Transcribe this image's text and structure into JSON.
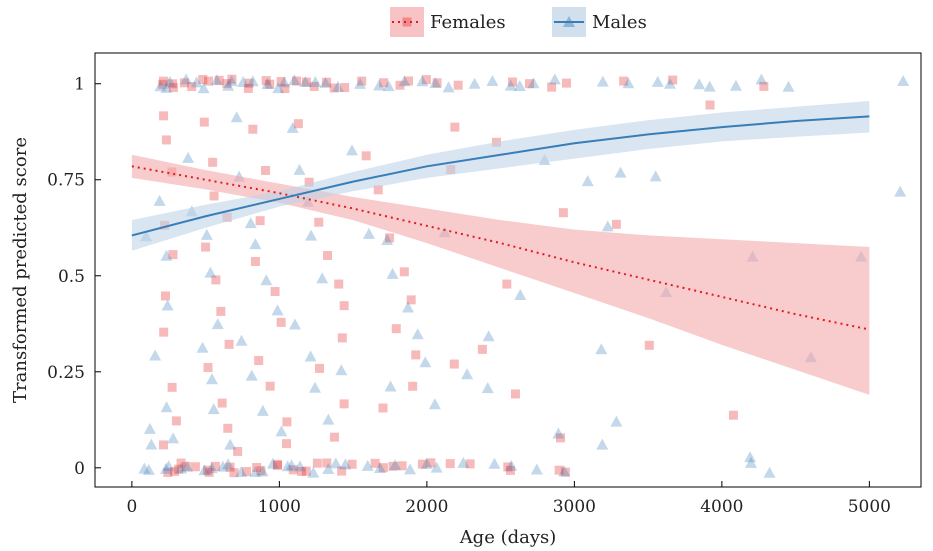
{
  "chart_data": {
    "type": "scatter",
    "xlabel": "Age (days)",
    "ylabel": "Transformed predicted score",
    "xlim": [
      -250,
      5350
    ],
    "ylim": [
      -0.05,
      1.08
    ],
    "x_ticks": [
      0,
      1000,
      2000,
      3000,
      4000,
      5000
    ],
    "x_tick_labels": [
      "0",
      "1000",
      "2000",
      "3000",
      "4000",
      "5000"
    ],
    "y_ticks": [
      0,
      0.25,
      0.5,
      0.75,
      1
    ],
    "y_tick_labels": [
      "0",
      "0.25",
      "0.5",
      "0.75",
      "1"
    ],
    "grid": false,
    "legend_position": "top-center",
    "series": [
      {
        "name": "Females",
        "marker": "square",
        "color": "#e41a1c",
        "band_color": "#f4a9ab",
        "fit": {
          "style": "dotted",
          "x": [
            0,
            500,
            1000,
            1500,
            2000,
            2500,
            3000,
            3500,
            4000,
            4500,
            5000
          ],
          "y": [
            0.785,
            0.75,
            0.715,
            0.675,
            0.63,
            0.585,
            0.535,
            0.49,
            0.445,
            0.4,
            0.36
          ],
          "lower": [
            0.755,
            0.725,
            0.69,
            0.645,
            0.585,
            0.52,
            0.455,
            0.39,
            0.32,
            0.255,
            0.19
          ],
          "upper": [
            0.815,
            0.775,
            0.74,
            0.705,
            0.675,
            0.645,
            0.62,
            0.605,
            0.595,
            0.585,
            0.575
          ]
        },
        "points": [
          [
            210,
            1
          ],
          [
            240,
            1
          ],
          [
            280,
            1
          ],
          [
            310,
            1
          ],
          [
            350,
            1
          ],
          [
            420,
            1
          ],
          [
            470,
            1
          ],
          [
            520,
            1
          ],
          [
            580,
            1
          ],
          [
            640,
            1
          ],
          [
            700,
            1
          ],
          [
            760,
            1
          ],
          [
            820,
            1
          ],
          [
            880,
            1
          ],
          [
            940,
            1
          ],
          [
            1000,
            1
          ],
          [
            1060,
            1
          ],
          [
            1120,
            1
          ],
          [
            1180,
            1
          ],
          [
            1260,
            1
          ],
          [
            1330,
            1
          ],
          [
            1400,
            1
          ],
          [
            1460,
            1
          ],
          [
            1560,
            1
          ],
          [
            1700,
            1
          ],
          [
            1800,
            1
          ],
          [
            1900,
            1
          ],
          [
            2000,
            1
          ],
          [
            2100,
            1
          ],
          [
            2200,
            1
          ],
          [
            2550,
            1
          ],
          [
            2700,
            1
          ],
          [
            2850,
            1
          ],
          [
            2950,
            1
          ],
          [
            3350,
            1
          ],
          [
            3650,
            1
          ],
          [
            4300,
            1
          ],
          [
            220,
            0
          ],
          [
            260,
            0
          ],
          [
            300,
            0
          ],
          [
            330,
            0
          ],
          [
            380,
            0
          ],
          [
            450,
            0
          ],
          [
            500,
            0
          ],
          [
            540,
            0
          ],
          [
            600,
            0
          ],
          [
            660,
            0
          ],
          [
            720,
            0
          ],
          [
            780,
            0
          ],
          [
            840,
            0
          ],
          [
            900,
            0
          ],
          [
            960,
            0
          ],
          [
            1020,
            0
          ],
          [
            1080,
            0
          ],
          [
            1140,
            0
          ],
          [
            1200,
            0
          ],
          [
            1280,
            0
          ],
          [
            1350,
            0
          ],
          [
            1420,
            0
          ],
          [
            1470,
            0
          ],
          [
            1650,
            0
          ],
          [
            1720,
            0
          ],
          [
            1800,
            0
          ],
          [
            1850,
            0
          ],
          [
            1950,
            0
          ],
          [
            2050,
            0
          ],
          [
            2150,
            0
          ],
          [
            2300,
            0
          ],
          [
            2550,
            0
          ],
          [
            2600,
            0
          ],
          [
            2900,
            0
          ],
          [
            2950,
            0
          ],
          [
            200,
            0.92
          ],
          [
            250,
            0.85
          ],
          [
            300,
            0.78
          ],
          [
            250,
            0.62
          ],
          [
            300,
            0.55
          ],
          [
            260,
            0.45
          ],
          [
            220,
            0.35
          ],
          [
            270,
            0.22
          ],
          [
            300,
            0.12
          ],
          [
            240,
            0.07
          ],
          [
            480,
            0.9
          ],
          [
            520,
            0.8
          ],
          [
            560,
            0.72
          ],
          [
            620,
            0.65
          ],
          [
            500,
            0.58
          ],
          [
            550,
            0.5
          ],
          [
            600,
            0.42
          ],
          [
            650,
            0.33
          ],
          [
            520,
            0.25
          ],
          [
            580,
            0.17
          ],
          [
            640,
            0.1
          ],
          [
            700,
            0.05
          ],
          [
            820,
            0.88
          ],
          [
            880,
            0.78
          ],
          [
            900,
            0.64
          ],
          [
            840,
            0.55
          ],
          [
            960,
            0.45
          ],
          [
            1000,
            0.37
          ],
          [
            880,
            0.28
          ],
          [
            950,
            0.2
          ],
          [
            1020,
            0.12
          ],
          [
            1080,
            0.06
          ],
          [
            1150,
            0.9
          ],
          [
            1220,
            0.75
          ],
          [
            1280,
            0.65
          ],
          [
            1320,
            0.55
          ],
          [
            1380,
            0.47
          ],
          [
            1450,
            0.42
          ],
          [
            1400,
            0.34
          ],
          [
            1300,
            0.25
          ],
          [
            1440,
            0.16
          ],
          [
            1380,
            0.08
          ],
          [
            1600,
            0.8
          ],
          [
            1700,
            0.73
          ],
          [
            1750,
            0.6
          ],
          [
            1820,
            0.5
          ],
          [
            1900,
            0.43
          ],
          [
            1800,
            0.35
          ],
          [
            1950,
            0.3
          ],
          [
            1880,
            0.2
          ],
          [
            1700,
            0.15
          ],
          [
            2200,
            0.88
          ],
          [
            2170,
            0.27
          ],
          [
            2180,
            0.78
          ],
          [
            2350,
            0.32
          ],
          [
            2550,
            0.49
          ],
          [
            2580,
            0.19
          ],
          [
            2500,
            0.84
          ],
          [
            2950,
            0.67
          ],
          [
            2900,
            0.09
          ],
          [
            3300,
            0.63
          ],
          [
            3520,
            0.31
          ],
          [
            4050,
            0.14
          ],
          [
            3900,
            0.95
          ]
        ]
      },
      {
        "name": "Males",
        "marker": "triangle",
        "color": "#377eb8",
        "band_color": "#bfd3e6",
        "fit": {
          "style": "solid",
          "x": [
            0,
            500,
            1000,
            1500,
            2000,
            2500,
            3000,
            3500,
            4000,
            4500,
            5000
          ],
          "y": [
            0.605,
            0.655,
            0.7,
            0.745,
            0.785,
            0.815,
            0.845,
            0.868,
            0.887,
            0.903,
            0.915
          ],
          "lower": [
            0.565,
            0.625,
            0.68,
            0.72,
            0.755,
            0.78,
            0.805,
            0.83,
            0.85,
            0.862,
            0.873
          ],
          "upper": [
            0.645,
            0.685,
            0.72,
            0.77,
            0.815,
            0.85,
            0.88,
            0.905,
            0.925,
            0.94,
            0.955
          ]
        },
        "points": [
          [
            100,
            0
          ],
          [
            140,
            0
          ],
          [
            200,
            0
          ],
          [
            260,
            0
          ],
          [
            330,
            0
          ],
          [
            400,
            0
          ],
          [
            470,
            0
          ],
          [
            540,
            0
          ],
          [
            610,
            0
          ],
          [
            680,
            0
          ],
          [
            750,
            0
          ],
          [
            820,
            0
          ],
          [
            890,
            0
          ],
          [
            960,
            0
          ],
          [
            1030,
            0
          ],
          [
            1100,
            0
          ],
          [
            1170,
            0
          ],
          [
            1240,
            0
          ],
          [
            1310,
            0
          ],
          [
            1380,
            0
          ],
          [
            1450,
            0
          ],
          [
            1600,
            0
          ],
          [
            1700,
            0
          ],
          [
            1780,
            0
          ],
          [
            1880,
            0
          ],
          [
            2000,
            0
          ],
          [
            2100,
            0
          ],
          [
            2250,
            0
          ],
          [
            2450,
            0
          ],
          [
            2600,
            0
          ],
          [
            2750,
            0
          ],
          [
            2900,
            0
          ],
          [
            4220,
            0
          ],
          [
            4300,
            0
          ],
          [
            170,
            1
          ],
          [
            230,
            1
          ],
          [
            290,
            1
          ],
          [
            360,
            1
          ],
          [
            430,
            1
          ],
          [
            500,
            1
          ],
          [
            570,
            1
          ],
          [
            640,
            1
          ],
          [
            710,
            1
          ],
          [
            780,
            1
          ],
          [
            850,
            1
          ],
          [
            920,
            1
          ],
          [
            990,
            1
          ],
          [
            1060,
            1
          ],
          [
            1130,
            1
          ],
          [
            1200,
            1
          ],
          [
            1270,
            1
          ],
          [
            1340,
            1
          ],
          [
            1410,
            1
          ],
          [
            1550,
            1
          ],
          [
            1650,
            1
          ],
          [
            1750,
            1
          ],
          [
            1850,
            1
          ],
          [
            1950,
            1
          ],
          [
            2050,
            1
          ],
          [
            2150,
            1
          ],
          [
            2350,
            1
          ],
          [
            2450,
            1
          ],
          [
            2550,
            1
          ],
          [
            2650,
            1
          ],
          [
            2750,
            1
          ],
          [
            2850,
            1
          ],
          [
            3200,
            1
          ],
          [
            3400,
            1
          ],
          [
            3550,
            1
          ],
          [
            3680,
            1
          ],
          [
            3850,
            1
          ],
          [
            3950,
            1
          ],
          [
            4100,
            1
          ],
          [
            4250,
            1
          ],
          [
            4420,
            1
          ],
          [
            5200,
            1
          ],
          [
            110,
            0.6
          ],
          [
            160,
            0.7
          ],
          [
            210,
            0.55
          ],
          [
            250,
            0.43
          ],
          [
            180,
            0.3
          ],
          [
            230,
            0.16
          ],
          [
            290,
            0.08
          ],
          [
            150,
            0.1
          ],
          [
            140,
            0.05
          ],
          [
            380,
            0.8
          ],
          [
            440,
            0.68
          ],
          [
            500,
            0.6
          ],
          [
            550,
            0.52
          ],
          [
            600,
            0.38
          ],
          [
            470,
            0.31
          ],
          [
            520,
            0.22
          ],
          [
            580,
            0.14
          ],
          [
            650,
            0.07
          ],
          [
            700,
            0.9
          ],
          [
            760,
            0.75
          ],
          [
            820,
            0.65
          ],
          [
            870,
            0.57
          ],
          [
            930,
            0.49
          ],
          [
            980,
            0.4
          ],
          [
            760,
            0.33
          ],
          [
            840,
            0.24
          ],
          [
            920,
            0.15
          ],
          [
            1000,
            0.1
          ],
          [
            1060,
            0.88
          ],
          [
            1110,
            0.78
          ],
          [
            1180,
            0.68
          ],
          [
            1240,
            0.6
          ],
          [
            1290,
            0.5
          ],
          [
            1100,
            0.38
          ],
          [
            1180,
            0.3
          ],
          [
            1260,
            0.2
          ],
          [
            1320,
            0.12
          ],
          [
            1400,
            0.25
          ],
          [
            1500,
            0.82
          ],
          [
            1620,
            0.62
          ],
          [
            1700,
            0.58
          ],
          [
            1780,
            0.5
          ],
          [
            1850,
            0.43
          ],
          [
            1920,
            0.34
          ],
          [
            2000,
            0.28
          ],
          [
            1750,
            0.22
          ],
          [
            2050,
            0.16
          ],
          [
            2100,
            0.62
          ],
          [
            2250,
            0.25
          ],
          [
            2400,
            0.21
          ],
          [
            2450,
            0.35
          ],
          [
            2600,
            0.44
          ],
          [
            2800,
            0.8
          ],
          [
            2900,
            0.08
          ],
          [
            3100,
            0.74
          ],
          [
            3200,
            0.3
          ],
          [
            3250,
            0.62
          ],
          [
            3300,
            0.12
          ],
          [
            3200,
            0.05
          ],
          [
            3300,
            0.76
          ],
          [
            3580,
            0.75
          ],
          [
            3650,
            0.46
          ],
          [
            4220,
            0.55
          ],
          [
            4220,
            0.03
          ],
          [
            4580,
            0.3
          ],
          [
            4950,
            0.55
          ],
          [
            5200,
            0.71
          ]
        ]
      }
    ]
  }
}
